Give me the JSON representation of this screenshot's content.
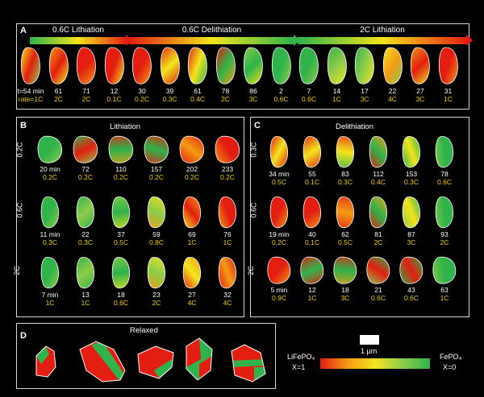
{
  "colors": {
    "red": "#e31e10",
    "orange": "#f39b14",
    "yellow": "#f2e51d",
    "green": "#2fb34a",
    "lightgreen": "#8dcc4a",
    "rate": "#f0d000"
  },
  "panelA": {
    "label": "A",
    "arrows": [
      {
        "label": "0.6C Lithiation",
        "dir": "g2r"
      },
      {
        "label": "0.6C Delithiation",
        "dir": "r2g"
      },
      {
        "label": "2C Lithiation",
        "dir": "g2r"
      }
    ],
    "cells": [
      {
        "t": "t=54 min",
        "r": "rate=1C",
        "c": [
          "#f2e51d",
          "#e31e10",
          "#8dcc4a"
        ]
      },
      {
        "t": "61",
        "r": "2C",
        "c": [
          "#f39b14",
          "#e31e10",
          "#f2e51d"
        ]
      },
      {
        "t": "71",
        "r": "2C",
        "c": [
          "#e31e10",
          "#e31e10",
          "#f39b14"
        ]
      },
      {
        "t": "12",
        "r": "0.1C",
        "c": [
          "#e31e10",
          "#e31e10",
          "#f2e51d"
        ]
      },
      {
        "t": "30",
        "r": "0.2C",
        "c": [
          "#e31e10",
          "#e31e10",
          "#f39b14"
        ]
      },
      {
        "t": "39",
        "r": "0.3C",
        "c": [
          "#e31e10",
          "#f2e51d",
          "#e31e10"
        ]
      },
      {
        "t": "61",
        "r": "0.4C",
        "c": [
          "#e31e10",
          "#f2e51d",
          "#2fb34a"
        ]
      },
      {
        "t": "78",
        "r": "2C",
        "c": [
          "#e31e10",
          "#2fb34a",
          "#f39b14"
        ]
      },
      {
        "t": "86",
        "r": "3C",
        "c": [
          "#8dcc4a",
          "#2fb34a",
          "#f2e51d"
        ]
      },
      {
        "t": "2",
        "r": "0.6C",
        "c": [
          "#2fb34a",
          "#2fb34a",
          "#8dcc4a"
        ]
      },
      {
        "t": "7",
        "r": "0.6C",
        "c": [
          "#2fb34a",
          "#2fb34a",
          "#8dcc4a"
        ]
      },
      {
        "t": "14",
        "r": "1C",
        "c": [
          "#2fb34a",
          "#8dcc4a",
          "#f2e51d"
        ]
      },
      {
        "t": "17",
        "r": "3C",
        "c": [
          "#2fb34a",
          "#8dcc4a",
          "#f2e51d"
        ]
      },
      {
        "t": "22",
        "r": "4C",
        "c": [
          "#f2e51d",
          "#f39b14",
          "#8dcc4a"
        ]
      },
      {
        "t": "27",
        "r": "3C",
        "c": [
          "#f39b14",
          "#e31e10",
          "#f2e51d"
        ]
      },
      {
        "t": "31",
        "r": "1C",
        "c": [
          "#e31e10",
          "#e31e10",
          "#f39b14"
        ]
      }
    ]
  },
  "panelB": {
    "label": "B",
    "title": "Lithiation",
    "rows": [
      {
        "label": "0.2C",
        "cells": [
          {
            "t": "20 min",
            "r": "0.2C",
            "c": [
              "#2fb34a",
              "#2fb34a",
              "#8dcc4a"
            ]
          },
          {
            "t": "72",
            "r": "0.2C",
            "c": [
              "#2fb34a",
              "#e31e10",
              "#8dcc4a"
            ]
          },
          {
            "t": "110",
            "r": "0.2C",
            "c": [
              "#e31e10",
              "#2fb34a",
              "#f39b14"
            ]
          },
          {
            "t": "157",
            "r": "0.2C",
            "c": [
              "#e31e10",
              "#2fb34a",
              "#e31e10"
            ]
          },
          {
            "t": "202",
            "r": "0.2C",
            "c": [
              "#e31e10",
              "#f39b14",
              "#e31e10"
            ]
          },
          {
            "t": "233",
            "r": "0.2C",
            "c": [
              "#e31e10",
              "#e31e10",
              "#f39b14"
            ]
          }
        ]
      },
      {
        "label": "0.6C",
        "cells": [
          {
            "t": "11 min",
            "r": "0.3C",
            "c": [
              "#2fb34a",
              "#2fb34a",
              "#8dcc4a"
            ]
          },
          {
            "t": "22",
            "r": "0.3C",
            "c": [
              "#2fb34a",
              "#8dcc4a",
              "#2fb34a"
            ]
          },
          {
            "t": "37",
            "r": "0.5C",
            "c": [
              "#8dcc4a",
              "#2fb34a",
              "#f2e51d"
            ]
          },
          {
            "t": "59",
            "r": "0.8C",
            "c": [
              "#f2e51d",
              "#8dcc4a",
              "#f39b14"
            ]
          },
          {
            "t": "69",
            "r": "1C",
            "c": [
              "#f39b14",
              "#e31e10",
              "#f2e51d"
            ]
          },
          {
            "t": "76",
            "r": "1C",
            "c": [
              "#e31e10",
              "#e31e10",
              "#f39b14"
            ]
          }
        ]
      },
      {
        "label": "2C",
        "cells": [
          {
            "t": "7 min",
            "r": "1C",
            "c": [
              "#2fb34a",
              "#2fb34a",
              "#8dcc4a"
            ]
          },
          {
            "t": "13",
            "r": "1C",
            "c": [
              "#2fb34a",
              "#8dcc4a",
              "#2fb34a"
            ]
          },
          {
            "t": "18",
            "r": "0.6C",
            "c": [
              "#8dcc4a",
              "#2fb34a",
              "#f2e51d"
            ]
          },
          {
            "t": "23",
            "r": "2C",
            "c": [
              "#f2e51d",
              "#8dcc4a",
              "#f39b14"
            ]
          },
          {
            "t": "27",
            "r": "4C",
            "c": [
              "#f39b14",
              "#f2e51d",
              "#e31e10"
            ]
          },
          {
            "t": "32",
            "r": "4C",
            "c": [
              "#e31e10",
              "#f39b14",
              "#e31e10"
            ]
          }
        ]
      }
    ]
  },
  "panelC": {
    "label": "C",
    "title": "Delithiation",
    "rows": [
      {
        "label": "0.3C",
        "cells": [
          {
            "t": "34 min",
            "r": "0.5C",
            "c": [
              "#e31e10",
              "#f2e51d",
              "#e31e10"
            ]
          },
          {
            "t": "55",
            "r": "0.1C",
            "c": [
              "#e31e10",
              "#f2e51d",
              "#e31e10"
            ]
          },
          {
            "t": "83",
            "r": "0.3C",
            "c": [
              "#e31e10",
              "#f2e51d",
              "#2fb34a"
            ]
          },
          {
            "t": "112",
            "r": "0.4C",
            "c": [
              "#f39b14",
              "#2fb34a",
              "#e31e10"
            ]
          },
          {
            "t": "153",
            "r": "0.3C",
            "c": [
              "#2fb34a",
              "#f2e51d",
              "#2fb34a"
            ]
          },
          {
            "t": "78",
            "r": "0.6C",
            "c": [
              "#2fb34a",
              "#2fb34a",
              "#8dcc4a"
            ]
          }
        ]
      },
      {
        "label": "0.6C",
        "cells": [
          {
            "t": "19 min",
            "r": "0.2C",
            "c": [
              "#e31e10",
              "#e31e10",
              "#f39b14"
            ]
          },
          {
            "t": "40",
            "r": "0.1C",
            "c": [
              "#e31e10",
              "#e31e10",
              "#f39b14"
            ]
          },
          {
            "t": "62",
            "r": "0.5C",
            "c": [
              "#e31e10",
              "#f39b14",
              "#e31e10"
            ]
          },
          {
            "t": "81",
            "r": "2C",
            "c": [
              "#f39b14",
              "#2fb34a",
              "#e31e10"
            ]
          },
          {
            "t": "87",
            "r": "3C",
            "c": [
              "#2fb34a",
              "#f2e51d",
              "#8dcc4a"
            ]
          },
          {
            "t": "93",
            "r": "2C",
            "c": [
              "#2fb34a",
              "#2fb34a",
              "#8dcc4a"
            ]
          }
        ]
      },
      {
        "label": "2C",
        "cells": [
          {
            "t": "5 min",
            "r": "0.9C",
            "c": [
              "#e31e10",
              "#e31e10",
              "#f39b14"
            ]
          },
          {
            "t": "12",
            "r": "1C",
            "c": [
              "#e31e10",
              "#2fb34a",
              "#e31e10"
            ]
          },
          {
            "t": "18",
            "r": "3C",
            "c": [
              "#e31e10",
              "#2fb34a",
              "#f39b14"
            ]
          },
          {
            "t": "21",
            "r": "0.6C",
            "c": [
              "#2fb34a",
              "#e31e10",
              "#8dcc4a"
            ]
          },
          {
            "t": "43",
            "r": "0.6C",
            "c": [
              "#2fb34a",
              "#e31e10",
              "#2fb34a"
            ]
          },
          {
            "t": "63",
            "r": "1C",
            "c": [
              "#2fb34a",
              "#2fb34a",
              "#8dcc4a"
            ]
          }
        ]
      }
    ]
  },
  "panelD": {
    "label": "D",
    "title": "Relaxed"
  },
  "legend": {
    "scalebar": "1 µm",
    "left_title": "LiFePO₄",
    "left_sub": "X=1",
    "right_title": "FePO₄",
    "right_sub": "X=0"
  }
}
